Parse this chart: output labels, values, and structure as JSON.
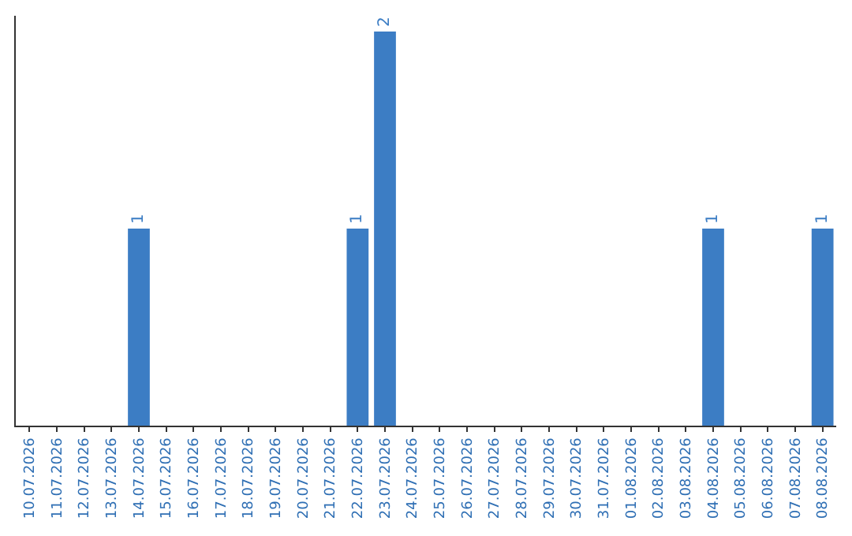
{
  "chart_data": {
    "type": "bar",
    "color": "#3c7dc4",
    "categories": [
      "10.07.2026",
      "11.07.2026",
      "12.07.2026",
      "13.07.2026",
      "14.07.2026",
      "15.07.2026",
      "16.07.2026",
      "17.07.2026",
      "18.07.2026",
      "19.07.2026",
      "20.07.2026",
      "21.07.2026",
      "22.07.2026",
      "23.07.2026",
      "24.07.2026",
      "25.07.2026",
      "26.07.2026",
      "27.07.2026",
      "28.07.2026",
      "29.07.2026",
      "30.07.2026",
      "31.07.2026",
      "01.08.2026",
      "02.08.2026",
      "03.08.2026",
      "04.08.2026",
      "05.08.2026",
      "06.08.2026",
      "07.08.2026",
      "08.08.2026"
    ],
    "values": [
      0,
      0,
      0,
      0,
      1,
      0,
      0,
      0,
      0,
      0,
      0,
      0,
      1,
      2,
      0,
      0,
      0,
      0,
      0,
      0,
      0,
      0,
      0,
      0,
      0,
      1,
      0,
      0,
      0,
      1
    ],
    "value_labels": [
      null,
      null,
      null,
      null,
      "1",
      null,
      null,
      null,
      null,
      null,
      null,
      null,
      "1",
      "2",
      null,
      null,
      null,
      null,
      null,
      null,
      null,
      null,
      null,
      null,
      null,
      "1",
      null,
      null,
      null,
      "1"
    ]
  }
}
